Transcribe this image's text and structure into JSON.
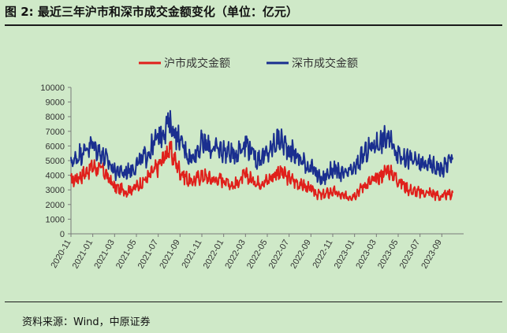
{
  "figure": {
    "title": "图 2:  最近三年沪市和深市成交金额变化（单位：亿元）",
    "source": "资料来源：Wind，中原证券"
  },
  "colors": {
    "background": "#cfe9c8",
    "sh": "#e0201b",
    "sz": "#1a2f8f"
  },
  "chart_data": {
    "type": "line",
    "title": "",
    "xlabel": "",
    "ylabel": "",
    "ylim": [
      0,
      10000
    ],
    "yticks": [
      0,
      1000,
      2000,
      3000,
      4000,
      5000,
      6000,
      7000,
      8000,
      9000,
      10000
    ],
    "x_tick_labels": [
      "2020-11",
      "2021-01",
      "2021-03",
      "2021-05",
      "2021-07",
      "2021-09",
      "2021-11",
      "2022-01",
      "2022-03",
      "2022-05",
      "2022-07",
      "2022-09",
      "2022-11",
      "2023-01",
      "2023-03",
      "2023-05",
      "2023-07",
      "2023-09"
    ],
    "x_start": "2020-11",
    "legend_position": "top",
    "grid": false,
    "months": [
      "2020-11",
      "2020-12",
      "2021-01",
      "2021-02",
      "2021-03",
      "2021-04",
      "2021-05",
      "2021-06",
      "2021-07",
      "2021-08",
      "2021-09",
      "2021-10",
      "2021-11",
      "2021-12",
      "2022-01",
      "2022-02",
      "2022-03",
      "2022-04",
      "2022-05",
      "2022-06",
      "2022-07",
      "2022-08",
      "2022-09",
      "2022-10",
      "2022-11",
      "2022-12",
      "2023-01",
      "2023-02",
      "2023-03",
      "2023-04",
      "2023-05",
      "2023-06",
      "2023-07",
      "2023-08",
      "2023-09",
      "2023-10"
    ],
    "series": [
      {
        "name": "沪市成交金额",
        "color": "#e0201b",
        "values": [
          3600,
          4000,
          4600,
          4300,
          3200,
          2900,
          3200,
          3800,
          4600,
          5800,
          4300,
          3500,
          4000,
          3700,
          3700,
          3300,
          4000,
          3500,
          3600,
          4300,
          3800,
          3400,
          3000,
          2600,
          2900,
          2500,
          2700,
          3400,
          3700,
          4400,
          3700,
          3000,
          2800,
          2800,
          2500,
          2800
        ]
      },
      {
        "name": "深市成交金额",
        "color": "#1a2f8f",
        "values": [
          4800,
          5600,
          6100,
          5300,
          4300,
          4200,
          4700,
          5400,
          6600,
          7600,
          6300,
          5100,
          6200,
          5800,
          5700,
          5400,
          6300,
          5100,
          5400,
          6500,
          5800,
          5100,
          4500,
          3700,
          4400,
          4000,
          4400,
          5600,
          6200,
          6600,
          5500,
          5100,
          4800,
          4700,
          4400,
          5200
        ]
      }
    ]
  }
}
